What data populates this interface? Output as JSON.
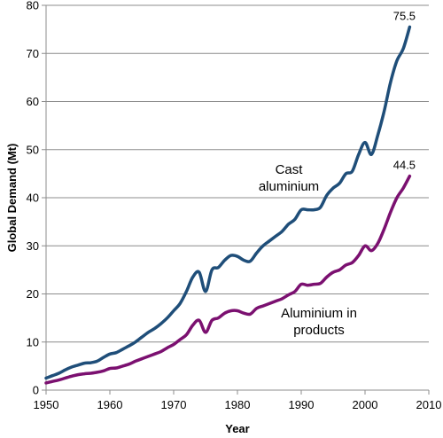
{
  "chart_data": {
    "type": "line",
    "xlabel": "Year",
    "ylabel": "Global Demand (Mt)",
    "xlim": [
      1950,
      2010
    ],
    "ylim": [
      0,
      80
    ],
    "x_ticks": [
      1950,
      1960,
      1970,
      1980,
      1990,
      2000,
      2010
    ],
    "y_ticks": [
      0,
      10,
      20,
      30,
      40,
      50,
      60,
      70,
      80
    ],
    "grid": "horizontal",
    "legend": "none",
    "series": [
      {
        "name": "Cast aluminium",
        "color": "#1f4e79",
        "annotation_lines": [
          "Cast",
          "aluminium"
        ],
        "end_label": "75.5",
        "x": [
          1950,
          1951,
          1952,
          1953,
          1954,
          1955,
          1956,
          1957,
          1958,
          1959,
          1960,
          1961,
          1962,
          1963,
          1964,
          1965,
          1966,
          1967,
          1968,
          1969,
          1970,
          1971,
          1972,
          1973,
          1974,
          1975,
          1976,
          1977,
          1978,
          1979,
          1980,
          1981,
          1982,
          1983,
          1984,
          1985,
          1986,
          1987,
          1988,
          1989,
          1990,
          1991,
          1992,
          1993,
          1994,
          1995,
          1996,
          1997,
          1998,
          1999,
          2000,
          2001,
          2002,
          2003,
          2004,
          2005,
          2006,
          2007
        ],
        "y": [
          2.5,
          3.0,
          3.5,
          4.2,
          4.8,
          5.2,
          5.6,
          5.7,
          6.0,
          6.8,
          7.5,
          7.8,
          8.5,
          9.2,
          10.0,
          11.0,
          12.0,
          12.8,
          13.8,
          15.0,
          16.5,
          18.0,
          20.5,
          23.5,
          24.5,
          20.5,
          25.0,
          25.5,
          27.0,
          28.0,
          27.8,
          27.0,
          26.8,
          28.5,
          30.0,
          31.0,
          32.0,
          33.0,
          34.5,
          35.5,
          37.5,
          37.5,
          37.5,
          38.0,
          40.5,
          42.0,
          43.0,
          45.0,
          45.5,
          49.0,
          51.5,
          49.0,
          53.0,
          58.0,
          64.0,
          68.5,
          71.0,
          75.5
        ]
      },
      {
        "name": "Aluminium in products",
        "color": "#7b1070",
        "annotation_lines": [
          "Aluminium in",
          "products"
        ],
        "end_label": "44.5",
        "x": [
          1950,
          1951,
          1952,
          1953,
          1954,
          1955,
          1956,
          1957,
          1958,
          1959,
          1960,
          1961,
          1962,
          1963,
          1964,
          1965,
          1966,
          1967,
          1968,
          1969,
          1970,
          1971,
          1972,
          1973,
          1974,
          1975,
          1976,
          1977,
          1978,
          1979,
          1980,
          1981,
          1982,
          1983,
          1984,
          1985,
          1986,
          1987,
          1988,
          1989,
          1990,
          1991,
          1992,
          1993,
          1994,
          1995,
          1996,
          1997,
          1998,
          1999,
          2000,
          2001,
          2002,
          2003,
          2004,
          2005,
          2006,
          2007
        ],
        "y": [
          1.5,
          1.8,
          2.1,
          2.5,
          2.9,
          3.2,
          3.4,
          3.5,
          3.7,
          4.0,
          4.5,
          4.6,
          5.0,
          5.4,
          6.0,
          6.5,
          7.0,
          7.5,
          8.0,
          8.8,
          9.5,
          10.5,
          11.5,
          13.5,
          14.5,
          12.0,
          14.5,
          15.0,
          16.0,
          16.5,
          16.5,
          16.0,
          15.8,
          17.0,
          17.5,
          18.0,
          18.5,
          19.0,
          19.8,
          20.5,
          22.0,
          21.8,
          22.0,
          22.2,
          23.5,
          24.5,
          25.0,
          26.0,
          26.5,
          28.0,
          30.0,
          29.0,
          30.5,
          33.5,
          37.0,
          40.0,
          42.0,
          44.5
        ]
      }
    ]
  }
}
